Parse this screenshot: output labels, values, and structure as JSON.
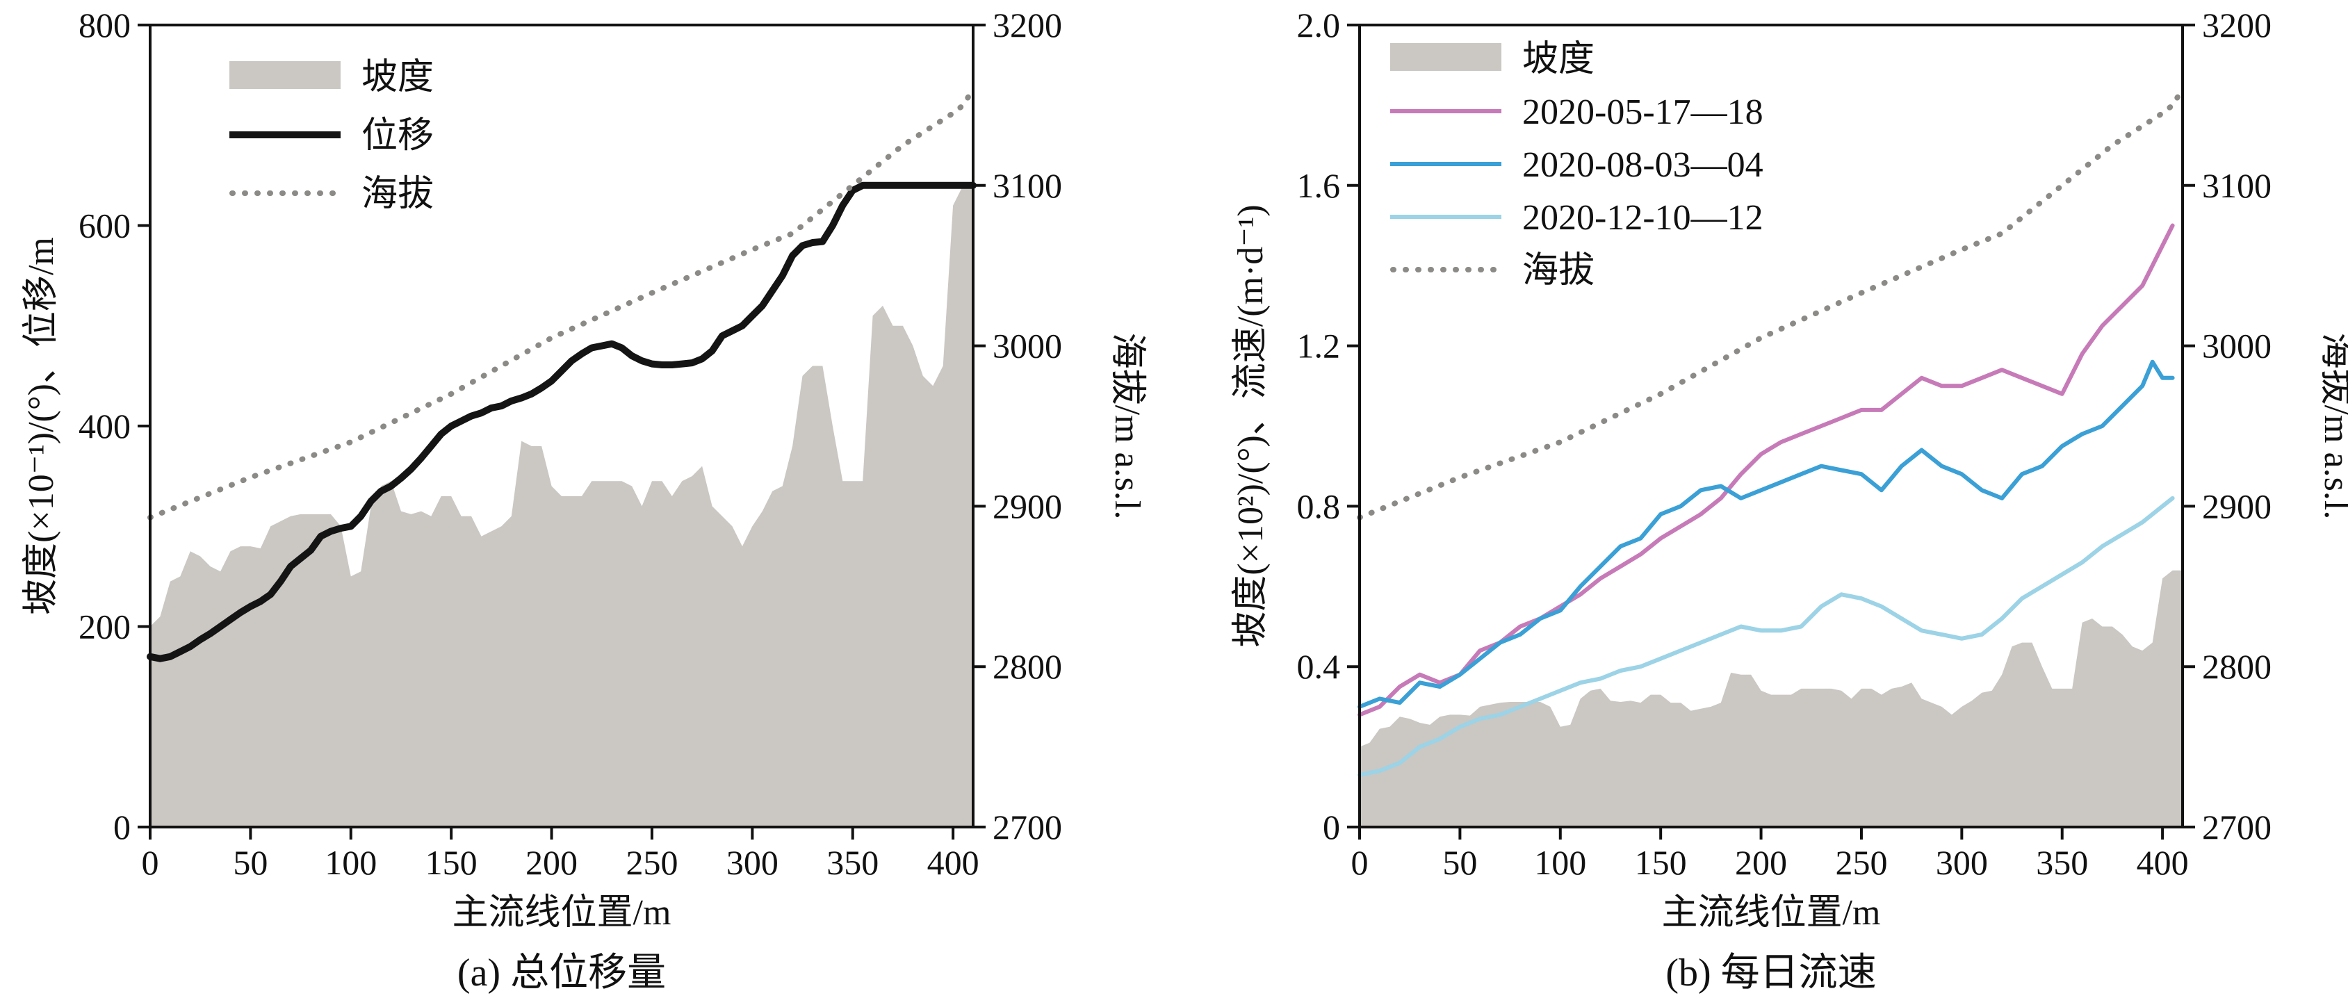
{
  "colors": {
    "slope_fill": "#cbc7c3",
    "displacement": "#141414",
    "elevation": "#8c8a87",
    "series_2020_05": "#c77ab8",
    "series_2020_08": "#3aa0d6",
    "series_2020_12": "#9cd3e6"
  },
  "chart_data": [
    {
      "type": "line",
      "caption": "(a) 总位移量",
      "xlabel": "主流线位置/m",
      "ylabel": "坡度(×10⁻¹)/(°)、位移/m",
      "y2label": "海拔/m a.s.l.",
      "xlim": [
        0,
        410
      ],
      "ylim": [
        0,
        800
      ],
      "y2lim": [
        2700,
        3200
      ],
      "xticks": [
        "0",
        "50",
        "100",
        "150",
        "200",
        "250",
        "300",
        "350",
        "400"
      ],
      "yticks": [
        "0",
        "200",
        "400",
        "600",
        "800"
      ],
      "y2ticks": [
        "2700",
        "2800",
        "2900",
        "3000",
        "3100",
        "3200"
      ],
      "legend": {
        "placement": "top-left",
        "entries": [
          "坡度",
          "位移",
          "海拔"
        ]
      },
      "series": [
        {
          "name": "坡度",
          "kind": "area",
          "axis": "left",
          "x": [
            0,
            5,
            10,
            15,
            20,
            25,
            30,
            35,
            40,
            45,
            50,
            55,
            60,
            65,
            70,
            75,
            80,
            85,
            90,
            95,
            100,
            105,
            110,
            115,
            120,
            125,
            130,
            135,
            140,
            145,
            150,
            155,
            160,
            165,
            170,
            175,
            180,
            185,
            190,
            195,
            200,
            205,
            210,
            215,
            220,
            225,
            230,
            235,
            240,
            245,
            250,
            255,
            260,
            265,
            270,
            275,
            280,
            285,
            290,
            295,
            300,
            305,
            310,
            315,
            320,
            325,
            330,
            335,
            340,
            345,
            350,
            355,
            360,
            365,
            370,
            375,
            380,
            385,
            390,
            395,
            400,
            405,
            410
          ],
          "values": [
            200,
            210,
            245,
            250,
            275,
            270,
            260,
            255,
            275,
            280,
            280,
            278,
            300,
            305,
            310,
            312,
            312,
            312,
            312,
            300,
            250,
            255,
            320,
            340,
            345,
            315,
            312,
            315,
            310,
            330,
            330,
            310,
            310,
            290,
            295,
            300,
            310,
            385,
            380,
            380,
            340,
            330,
            330,
            330,
            345,
            345,
            345,
            345,
            340,
            320,
            345,
            345,
            330,
            345,
            350,
            360,
            320,
            310,
            300,
            280,
            300,
            315,
            335,
            340,
            380,
            450,
            460,
            460,
            400,
            345,
            345,
            345,
            510,
            520,
            500,
            500,
            480,
            450,
            440,
            460,
            620,
            640,
            640
          ]
        },
        {
          "name": "位移",
          "kind": "line",
          "axis": "left",
          "x": [
            0,
            5,
            10,
            15,
            20,
            25,
            30,
            35,
            40,
            45,
            50,
            55,
            60,
            65,
            70,
            75,
            80,
            85,
            90,
            95,
            100,
            105,
            110,
            115,
            120,
            125,
            130,
            135,
            140,
            145,
            150,
            155,
            160,
            165,
            170,
            175,
            180,
            185,
            190,
            195,
            200,
            205,
            210,
            215,
            220,
            225,
            230,
            235,
            240,
            245,
            250,
            255,
            260,
            265,
            270,
            275,
            280,
            285,
            290,
            295,
            300,
            305,
            310,
            315,
            320,
            325,
            330,
            335,
            340,
            345,
            350,
            355,
            360,
            365,
            370,
            375,
            380,
            385,
            390,
            395,
            400,
            405,
            410
          ],
          "values": [
            170,
            168,
            170,
            175,
            180,
            187,
            193,
            200,
            207,
            214,
            220,
            225,
            232,
            245,
            260,
            268,
            276,
            290,
            295,
            298,
            300,
            310,
            325,
            335,
            340,
            348,
            357,
            368,
            380,
            392,
            400,
            405,
            410,
            413,
            418,
            420,
            425,
            428,
            432,
            438,
            445,
            455,
            465,
            472,
            478,
            480,
            482,
            478,
            470,
            465,
            462,
            461,
            461,
            462,
            463,
            467,
            475,
            490,
            495,
            500,
            510,
            520,
            535,
            550,
            570,
            580,
            583,
            584,
            600,
            620,
            635,
            640,
            640,
            640,
            640,
            640,
            640,
            640,
            640,
            640,
            640,
            640,
            640
          ]
        },
        {
          "name": "海拔",
          "kind": "dotted",
          "axis": "right",
          "x": [
            0,
            50,
            100,
            150,
            200,
            250,
            300,
            320,
            350,
            375,
            390,
            400,
            405,
            410
          ],
          "values": [
            2893,
            2918,
            2940,
            2970,
            3005,
            3033,
            3060,
            3070,
            3100,
            3125,
            3137,
            3145,
            3150,
            3160
          ]
        }
      ]
    },
    {
      "type": "line",
      "caption": "(b) 每日流速",
      "xlabel": "主流线位置/m",
      "ylabel": "坡度(×10²)/(°)、流速/(m·d⁻¹)",
      "y2label": "海拔/m a.s.l.",
      "xlim": [
        0,
        410
      ],
      "ylim": [
        0,
        2.0
      ],
      "y2lim": [
        2700,
        3200
      ],
      "xticks": [
        "0",
        "50",
        "100",
        "150",
        "200",
        "250",
        "300",
        "350",
        "400"
      ],
      "yticks": [
        "0",
        "0.4",
        "0.8",
        "1.2",
        "1.6",
        "2.0"
      ],
      "y2ticks": [
        "2700",
        "2800",
        "2900",
        "3000",
        "3100",
        "3200"
      ],
      "legend": {
        "placement": "top-left",
        "entries": [
          "坡度",
          "2020-05-17—18",
          "2020-08-03—04",
          "2020-12-10—12",
          "海拔"
        ]
      },
      "series": [
        {
          "name": "坡度",
          "kind": "area",
          "axis": "left",
          "x": [
            0,
            5,
            10,
            15,
            20,
            25,
            30,
            35,
            40,
            45,
            50,
            55,
            60,
            65,
            70,
            75,
            80,
            85,
            90,
            95,
            100,
            105,
            110,
            115,
            120,
            125,
            130,
            135,
            140,
            145,
            150,
            155,
            160,
            165,
            170,
            175,
            180,
            185,
            190,
            195,
            200,
            205,
            210,
            215,
            220,
            225,
            230,
            235,
            240,
            245,
            250,
            255,
            260,
            265,
            270,
            275,
            280,
            285,
            290,
            295,
            300,
            305,
            310,
            315,
            320,
            325,
            330,
            335,
            340,
            345,
            350,
            355,
            360,
            365,
            370,
            375,
            380,
            385,
            390,
            395,
            400,
            405,
            410
          ],
          "values": [
            0.2,
            0.21,
            0.245,
            0.25,
            0.275,
            0.27,
            0.26,
            0.255,
            0.275,
            0.28,
            0.28,
            0.278,
            0.3,
            0.305,
            0.31,
            0.312,
            0.312,
            0.312,
            0.312,
            0.3,
            0.25,
            0.255,
            0.32,
            0.34,
            0.345,
            0.315,
            0.312,
            0.315,
            0.31,
            0.33,
            0.33,
            0.31,
            0.31,
            0.29,
            0.295,
            0.3,
            0.31,
            0.385,
            0.38,
            0.38,
            0.34,
            0.33,
            0.33,
            0.33,
            0.345,
            0.345,
            0.345,
            0.345,
            0.34,
            0.32,
            0.345,
            0.345,
            0.33,
            0.345,
            0.35,
            0.36,
            0.32,
            0.31,
            0.3,
            0.28,
            0.3,
            0.315,
            0.335,
            0.34,
            0.38,
            0.45,
            0.46,
            0.46,
            0.4,
            0.345,
            0.345,
            0.345,
            0.51,
            0.52,
            0.5,
            0.5,
            0.48,
            0.45,
            0.44,
            0.46,
            0.62,
            0.64,
            0.64
          ]
        },
        {
          "name": "2020-05-17—18",
          "kind": "line",
          "axis": "left",
          "x": [
            0,
            10,
            20,
            30,
            40,
            50,
            60,
            70,
            80,
            90,
            100,
            110,
            120,
            130,
            140,
            150,
            160,
            170,
            180,
            190,
            200,
            210,
            220,
            230,
            240,
            250,
            260,
            270,
            280,
            290,
            300,
            310,
            320,
            330,
            340,
            350,
            360,
            370,
            380,
            390,
            400,
            405
          ],
          "values": [
            0.28,
            0.3,
            0.35,
            0.38,
            0.36,
            0.38,
            0.44,
            0.46,
            0.5,
            0.52,
            0.55,
            0.58,
            0.62,
            0.65,
            0.68,
            0.72,
            0.75,
            0.78,
            0.82,
            0.88,
            0.93,
            0.96,
            0.98,
            1.0,
            1.02,
            1.04,
            1.04,
            1.08,
            1.12,
            1.1,
            1.1,
            1.12,
            1.14,
            1.12,
            1.1,
            1.08,
            1.18,
            1.25,
            1.3,
            1.35,
            1.45,
            1.5
          ]
        },
        {
          "name": "2020-08-03—04",
          "kind": "line",
          "axis": "left",
          "x": [
            0,
            10,
            20,
            30,
            40,
            50,
            60,
            70,
            80,
            90,
            100,
            110,
            120,
            130,
            140,
            150,
            160,
            170,
            180,
            190,
            200,
            210,
            220,
            230,
            240,
            250,
            260,
            270,
            280,
            290,
            300,
            310,
            320,
            330,
            340,
            350,
            360,
            370,
            380,
            390,
            395,
            400,
            405
          ],
          "values": [
            0.3,
            0.32,
            0.31,
            0.36,
            0.35,
            0.38,
            0.42,
            0.46,
            0.48,
            0.52,
            0.54,
            0.6,
            0.65,
            0.7,
            0.72,
            0.78,
            0.8,
            0.84,
            0.85,
            0.82,
            0.84,
            0.86,
            0.88,
            0.9,
            0.89,
            0.88,
            0.84,
            0.9,
            0.94,
            0.9,
            0.88,
            0.84,
            0.82,
            0.88,
            0.9,
            0.95,
            0.98,
            1.0,
            1.05,
            1.1,
            1.16,
            1.12,
            1.12
          ]
        },
        {
          "name": "2020-12-10—12",
          "kind": "line",
          "axis": "left",
          "x": [
            0,
            10,
            20,
            30,
            40,
            50,
            60,
            70,
            80,
            90,
            100,
            110,
            120,
            130,
            140,
            150,
            160,
            170,
            180,
            190,
            200,
            210,
            220,
            230,
            240,
            250,
            260,
            270,
            280,
            290,
            300,
            310,
            320,
            330,
            340,
            350,
            360,
            370,
            380,
            390,
            400,
            405
          ],
          "values": [
            0.13,
            0.14,
            0.16,
            0.2,
            0.22,
            0.25,
            0.27,
            0.28,
            0.3,
            0.32,
            0.34,
            0.36,
            0.37,
            0.39,
            0.4,
            0.42,
            0.44,
            0.46,
            0.48,
            0.5,
            0.49,
            0.49,
            0.5,
            0.55,
            0.58,
            0.57,
            0.55,
            0.52,
            0.49,
            0.48,
            0.47,
            0.48,
            0.52,
            0.57,
            0.6,
            0.63,
            0.66,
            0.7,
            0.73,
            0.76,
            0.8,
            0.82
          ]
        },
        {
          "name": "海拔",
          "kind": "dotted",
          "axis": "right",
          "x": [
            0,
            50,
            100,
            150,
            200,
            250,
            300,
            320,
            350,
            375,
            390,
            400,
            405,
            410
          ],
          "values": [
            2893,
            2918,
            2940,
            2970,
            3005,
            3033,
            3060,
            3070,
            3100,
            3125,
            3137,
            3145,
            3150,
            3160
          ]
        }
      ]
    }
  ]
}
